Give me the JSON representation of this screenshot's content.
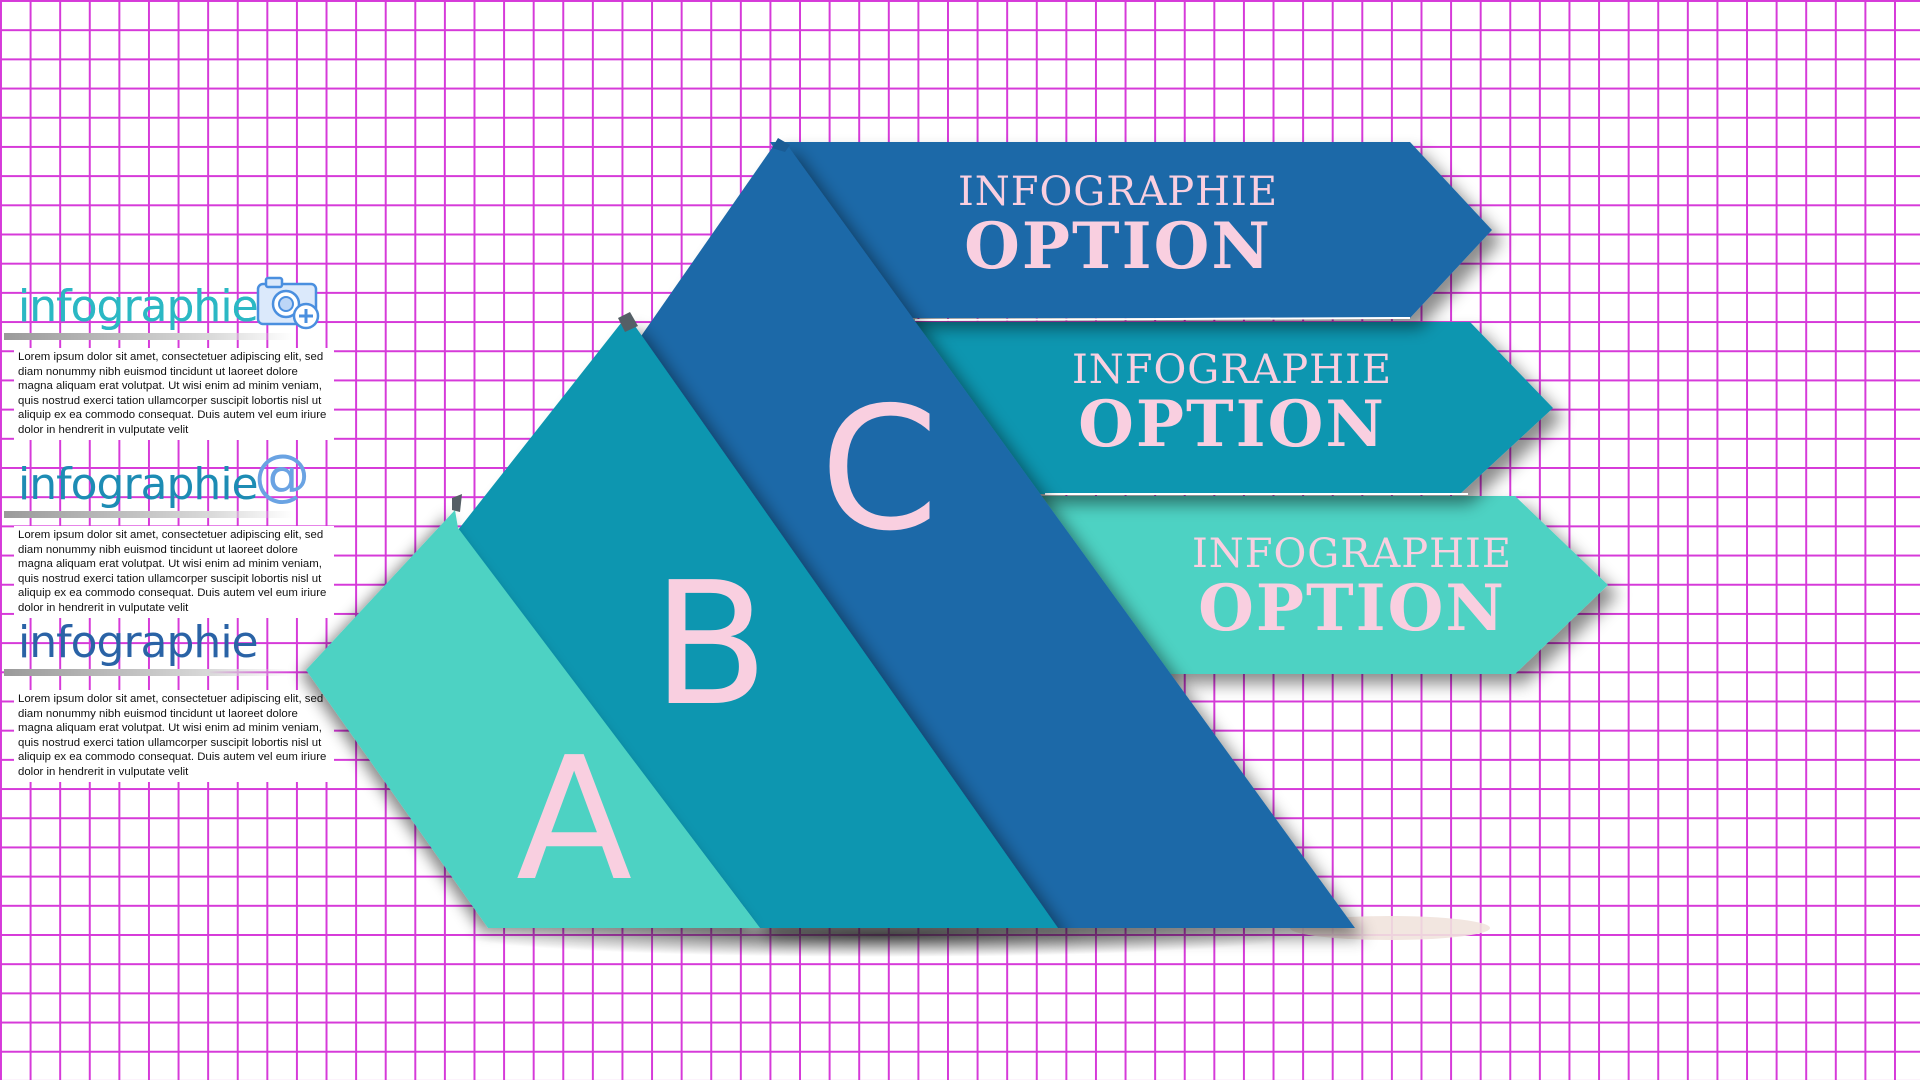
{
  "colors": {
    "grid": "#d63ad9",
    "band_a": "#4dd2c3",
    "band_b": "#0a96b0",
    "band_c": "#1e69a8",
    "text_pink": "#f9cfe0"
  },
  "sidebar": {
    "sections": [
      {
        "title": "infographie",
        "icon": "camera-icon",
        "body": "Lorem ipsum dolor sit amet, consectetuer adipiscing elit, sed diam nonummy nibh euismod tincidunt ut laoreet dolore magna aliquam erat volutpat. Ut wisi enim ad minim veniam, quis nostrud exerci tation ullamcorper suscipit lobortis nisl ut aliquip ex ea commodo consequat. Duis autem vel eum iriure dolor in hendrerit in vulputate velit"
      },
      {
        "title": "infographie",
        "icon": "at-sign-icon",
        "icon_glyph": "@",
        "body": "Lorem ipsum dolor sit amet, consectetuer adipiscing elit, sed diam nonummy nibh euismod tincidunt ut laoreet dolore magna aliquam erat volutpat. Ut wisi enim ad minim veniam, quis nostrud exerci tation ullamcorper suscipit lobortis nisl ut aliquip ex ea commodo consequat. Duis autem vel eum iriure dolor in hendrerit in vulputate velit"
      },
      {
        "title": "infographie",
        "body": "Lorem ipsum dolor sit amet, consectetuer adipiscing elit, sed diam nonummy nibh euismod tincidunt ut laoreet dolore magna aliquam erat volutpat. Ut wisi enim ad minim veniam, quis nostrud exerci tation ullamcorper suscipit lobortis nisl ut aliquip ex ea commodo consequat. Duis autem vel eum iriure dolor in hendrerit in vulputate velit"
      }
    ]
  },
  "diagram": {
    "letters": [
      "A",
      "B",
      "C"
    ],
    "options": [
      {
        "line1": "INFOGRAPHIE",
        "line2": "OPTION"
      },
      {
        "line1": "INFOGRAPHIE",
        "line2": "OPTION"
      },
      {
        "line1": "INFOGRAPHIE",
        "line2": "OPTION"
      }
    ]
  }
}
